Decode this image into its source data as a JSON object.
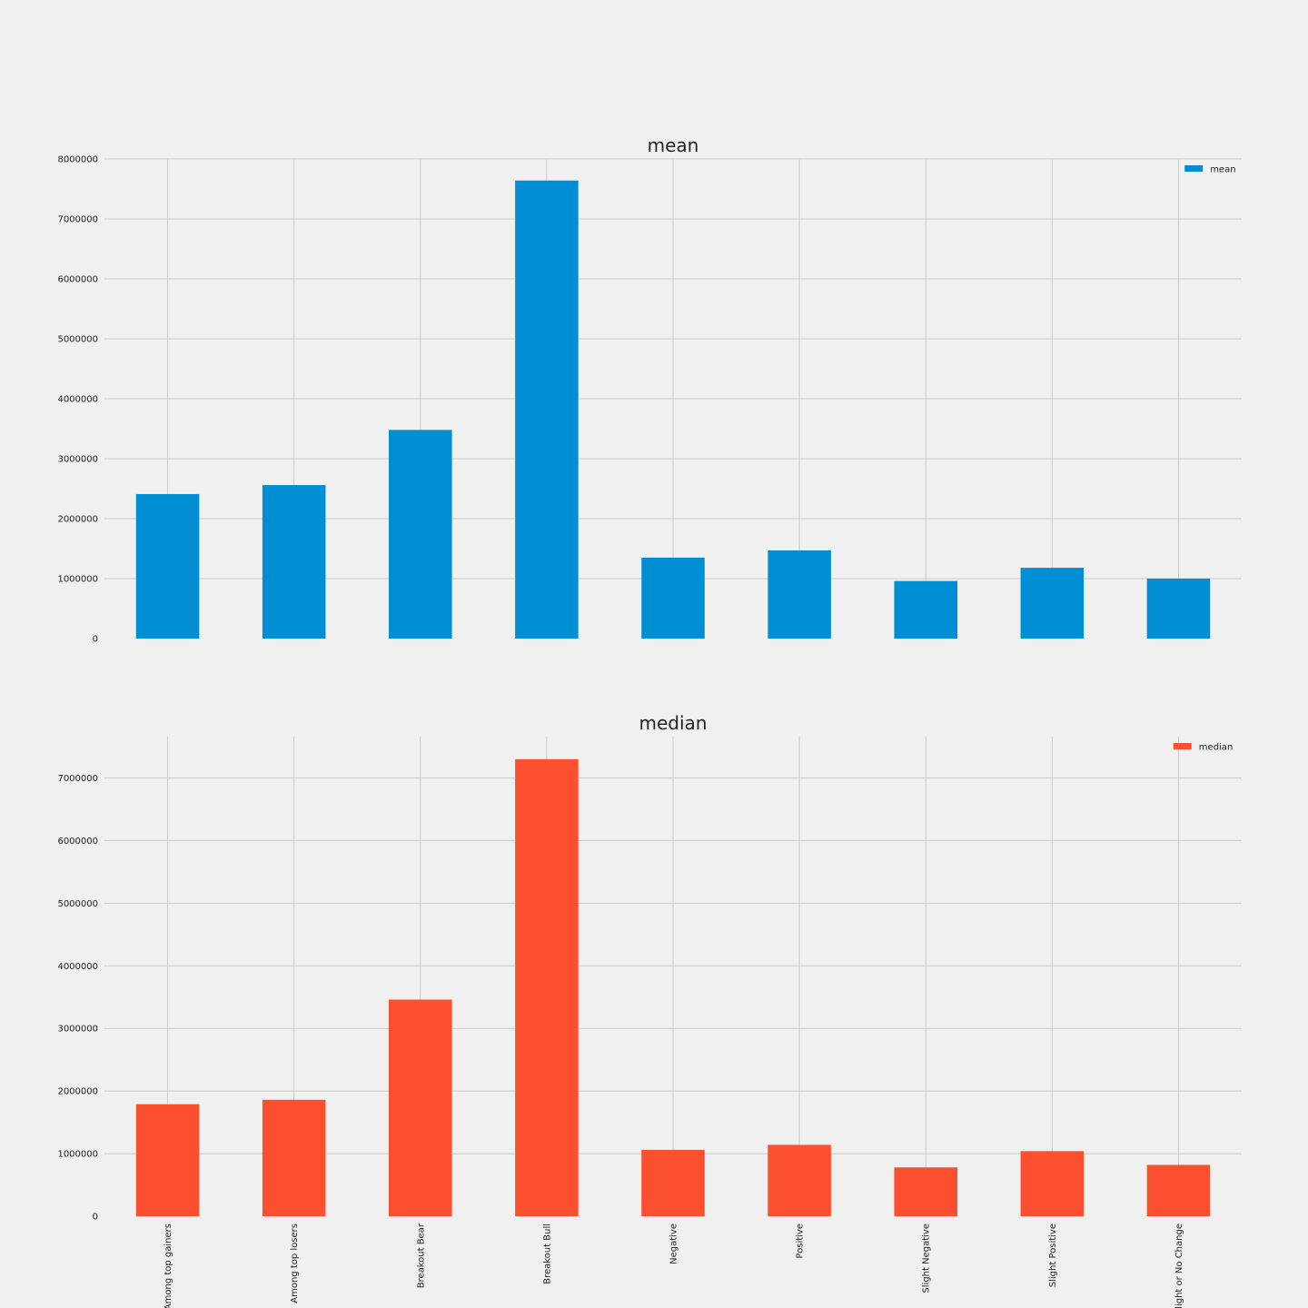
{
  "chart_data": [
    {
      "type": "bar",
      "title": "mean",
      "xlabel": "",
      "ylabel": "",
      "categories": [
        "Among top gainers",
        "Among top losers",
        "Breakout Bear",
        "Breakout Bull",
        "Negative",
        "Positive",
        "Slight Negative",
        "Slight Positive",
        "Slight or No Change"
      ],
      "series": [
        {
          "name": "mean",
          "color": "#008fd5",
          "values": [
            2410000,
            2560000,
            3480000,
            7640000,
            1350000,
            1470000,
            960000,
            1180000,
            1000000
          ]
        }
      ],
      "ylim": [
        0,
        8000000
      ],
      "yticks": [
        "0",
        "1000000",
        "2000000",
        "3000000",
        "4000000",
        "5000000",
        "6000000",
        "7000000",
        "8000000"
      ],
      "show_xtick_labels": false,
      "grid": true,
      "legend_position": "top-right"
    },
    {
      "type": "bar",
      "title": "median",
      "xlabel": "",
      "ylabel": "",
      "categories": [
        "Among top gainers",
        "Among top losers",
        "Breakout Bear",
        "Breakout Bull",
        "Negative",
        "Positive",
        "Slight Negative",
        "Slight Positive",
        "Slight or No Change"
      ],
      "series": [
        {
          "name": "median",
          "color": "#fc4f30",
          "values": [
            1790000,
            1860000,
            3460000,
            7300000,
            1060000,
            1140000,
            780000,
            1040000,
            820000
          ]
        }
      ],
      "ylim": [
        0,
        7660000
      ],
      "yticks": [
        "0",
        "1000000",
        "2000000",
        "3000000",
        "4000000",
        "5000000",
        "6000000",
        "7000000"
      ],
      "show_xtick_labels": true,
      "grid": true,
      "legend_position": "top-right"
    }
  ]
}
